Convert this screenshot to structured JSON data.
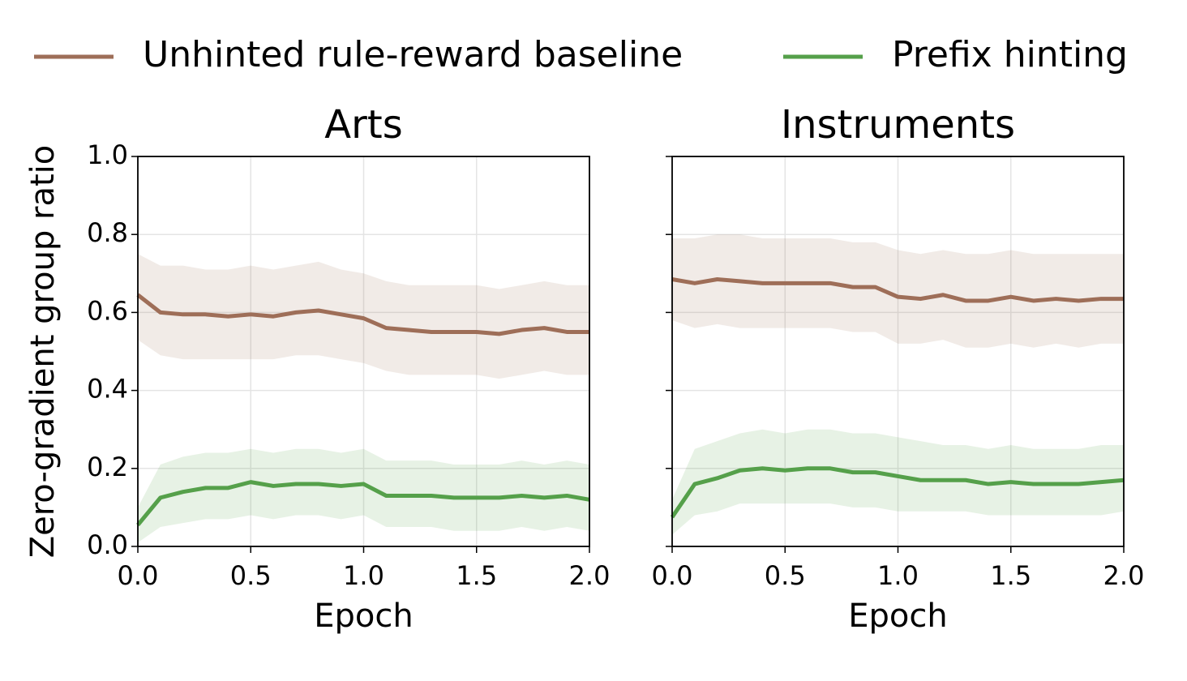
{
  "chart_data": [
    {
      "type": "line",
      "title": "Arts",
      "xlabel": "Epoch",
      "ylabel": "Zero-gradient group ratio",
      "grid": true,
      "x": [
        0,
        0.1,
        0.2,
        0.3,
        0.4,
        0.5,
        0.6,
        0.7,
        0.8,
        0.9,
        1.0,
        1.1,
        1.2,
        1.3,
        1.4,
        1.5,
        1.6,
        1.7,
        1.8,
        1.9,
        2.0
      ],
      "xlim": [
        0,
        2
      ],
      "ylim": [
        0,
        1
      ],
      "xticks": [
        {
          "value": 0,
          "label": "0.0"
        },
        0.5,
        {
          "value": 1,
          "label": "1.0"
        },
        1.5,
        {
          "value": 2,
          "label": "2.0"
        }
      ],
      "yticks": [
        {
          "value": 0,
          "label": "0.0"
        },
        0.2,
        0.4,
        0.6,
        0.8,
        {
          "value": 1,
          "label": "1.0"
        }
      ],
      "series": [
        {
          "name": "Unhinted rule-reward baseline",
          "color": "#9e6e58",
          "values": [
            0.645,
            0.6,
            0.595,
            0.595,
            0.59,
            0.595,
            0.59,
            0.6,
            0.605,
            0.595,
            0.585,
            0.56,
            0.555,
            0.55,
            0.55,
            0.55,
            0.545,
            0.555,
            0.56,
            0.55,
            0.55
          ],
          "low": [
            0.53,
            0.49,
            0.48,
            0.48,
            0.48,
            0.48,
            0.48,
            0.49,
            0.49,
            0.48,
            0.47,
            0.45,
            0.44,
            0.44,
            0.44,
            0.44,
            0.43,
            0.44,
            0.45,
            0.44,
            0.44
          ],
          "high": [
            0.75,
            0.72,
            0.72,
            0.71,
            0.71,
            0.72,
            0.71,
            0.72,
            0.73,
            0.71,
            0.7,
            0.68,
            0.67,
            0.67,
            0.67,
            0.67,
            0.66,
            0.67,
            0.68,
            0.67,
            0.67
          ]
        },
        {
          "name": "Prefix hinting",
          "color": "#55a04a",
          "values": [
            0.055,
            0.125,
            0.14,
            0.15,
            0.15,
            0.165,
            0.155,
            0.16,
            0.16,
            0.155,
            0.16,
            0.13,
            0.13,
            0.13,
            0.125,
            0.125,
            0.125,
            0.13,
            0.125,
            0.13,
            0.12
          ],
          "low": [
            0.01,
            0.05,
            0.06,
            0.07,
            0.07,
            0.08,
            0.07,
            0.08,
            0.08,
            0.07,
            0.08,
            0.05,
            0.05,
            0.05,
            0.04,
            0.04,
            0.04,
            0.05,
            0.04,
            0.05,
            0.04
          ],
          "high": [
            0.1,
            0.21,
            0.23,
            0.24,
            0.24,
            0.25,
            0.24,
            0.25,
            0.25,
            0.24,
            0.25,
            0.22,
            0.22,
            0.22,
            0.21,
            0.21,
            0.21,
            0.22,
            0.21,
            0.22,
            0.21
          ]
        }
      ]
    },
    {
      "type": "line",
      "title": "Instruments",
      "xlabel": "Epoch",
      "grid": true,
      "x": [
        0,
        0.1,
        0.2,
        0.3,
        0.4,
        0.5,
        0.6,
        0.7,
        0.8,
        0.9,
        1.0,
        1.1,
        1.2,
        1.3,
        1.4,
        1.5,
        1.6,
        1.7,
        1.8,
        1.9,
        2.0
      ],
      "xlim": [
        0,
        2
      ],
      "ylim": [
        0,
        1
      ],
      "xticks": [
        {
          "value": 0,
          "label": "0.0"
        },
        0.5,
        {
          "value": 1,
          "label": "1.0"
        },
        1.5,
        {
          "value": 2,
          "label": "2.0"
        }
      ],
      "yticks": [
        0,
        0.2,
        0.4,
        0.6,
        0.8,
        1
      ],
      "series": [
        {
          "color": "#9e6e58",
          "values": [
            0.685,
            0.675,
            0.685,
            0.68,
            0.675,
            0.675,
            0.675,
            0.675,
            0.665,
            0.665,
            0.64,
            0.635,
            0.645,
            0.63,
            0.63,
            0.64,
            0.63,
            0.635,
            0.63,
            0.635,
            0.635
          ],
          "low": [
            0.58,
            0.56,
            0.57,
            0.56,
            0.56,
            0.56,
            0.56,
            0.56,
            0.55,
            0.55,
            0.52,
            0.52,
            0.53,
            0.51,
            0.51,
            0.52,
            0.51,
            0.52,
            0.51,
            0.52,
            0.52
          ],
          "high": [
            0.79,
            0.79,
            0.8,
            0.8,
            0.79,
            0.79,
            0.79,
            0.79,
            0.78,
            0.78,
            0.76,
            0.75,
            0.76,
            0.75,
            0.75,
            0.76,
            0.75,
            0.75,
            0.75,
            0.75,
            0.75
          ]
        },
        {
          "color": "#55a04a",
          "values": [
            0.075,
            0.16,
            0.175,
            0.195,
            0.2,
            0.195,
            0.2,
            0.2,
            0.19,
            0.19,
            0.18,
            0.17,
            0.17,
            0.17,
            0.16,
            0.165,
            0.16,
            0.16,
            0.16,
            0.165,
            0.17
          ],
          "low": [
            0.03,
            0.08,
            0.09,
            0.11,
            0.11,
            0.11,
            0.11,
            0.11,
            0.1,
            0.1,
            0.09,
            0.09,
            0.09,
            0.09,
            0.08,
            0.08,
            0.08,
            0.08,
            0.08,
            0.08,
            0.09
          ],
          "high": [
            0.12,
            0.25,
            0.27,
            0.29,
            0.3,
            0.29,
            0.3,
            0.3,
            0.29,
            0.29,
            0.28,
            0.27,
            0.26,
            0.26,
            0.25,
            0.26,
            0.25,
            0.25,
            0.25,
            0.26,
            0.26
          ]
        }
      ]
    }
  ]
}
